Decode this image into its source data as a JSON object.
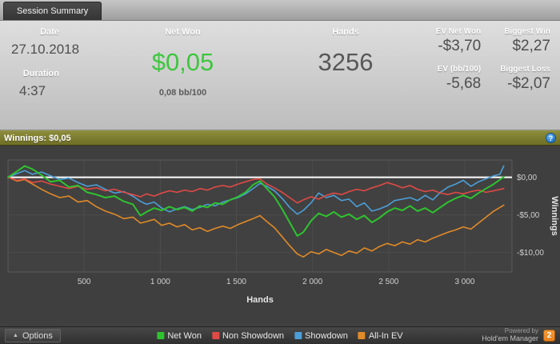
{
  "window": {
    "tab_title": "Session Summary"
  },
  "colors": {
    "net_won_green": "#3ec63e",
    "winnings_bar": "#6f6f26",
    "winnings_bar_light": "#8c8c3c",
    "help_blue": "#2f86d8",
    "badge_orange": "#e8821e"
  },
  "stats": {
    "date": {
      "label": "Date",
      "value": "27.10.2018"
    },
    "duration": {
      "label": "Duration",
      "value": "4:37"
    },
    "net_won": {
      "label": "Net Won",
      "value": "$0,05",
      "sub": "0,08 bb/100"
    },
    "hands": {
      "label": "Hands",
      "value": "3256"
    },
    "ev_net_won": {
      "label": "EV Net Won",
      "value": "-$3,70"
    },
    "biggest_win": {
      "label": "Biggest Win",
      "value": "$2,27"
    },
    "ev_bb100": {
      "label": "EV (bb/100)",
      "value": "-5,68"
    },
    "biggest_loss": {
      "label": "Biggest Loss",
      "value": "-$2,07"
    }
  },
  "winnings_bar": {
    "label": "Winnings: $0,05",
    "help": "?"
  },
  "chart_data": {
    "type": "line",
    "xlabel": "Hands",
    "ylabel": "Winnings",
    "xlim": [
      0,
      3310
    ],
    "ylim": [
      -12.6,
      2.3
    ],
    "plot_bg": "#414141",
    "plot_border": "#5a5a5a",
    "grid_color": "#4d4d4d",
    "tick_color": "#d0d0d0",
    "zero_line_color": "#ffffff",
    "x_ticks": [
      {
        "value": 500,
        "label": "500"
      },
      {
        "value": 1000,
        "label": "1 000"
      },
      {
        "value": 1500,
        "label": "1 500"
      },
      {
        "value": 2000,
        "label": "2 000"
      },
      {
        "value": 2500,
        "label": "2 500"
      },
      {
        "value": 3000,
        "label": "3 000"
      }
    ],
    "y_ticks": [
      {
        "value": 0,
        "label": "$0,00"
      },
      {
        "value": -5,
        "label": "-$5,00"
      },
      {
        "value": -10,
        "label": "-$10,00"
      }
    ],
    "series": [
      {
        "name": "Net Won",
        "color": "#2ec42e",
        "width": 2,
        "points": [
          [
            0,
            0
          ],
          [
            60,
            0.8
          ],
          [
            110,
            1.5
          ],
          [
            160,
            1.1
          ],
          [
            220,
            0.3
          ],
          [
            280,
            -0.6
          ],
          [
            340,
            -0.4
          ],
          [
            400,
            -1.3
          ],
          [
            460,
            -1.1
          ],
          [
            520,
            -2.0
          ],
          [
            580,
            -2.3
          ],
          [
            640,
            -2.7
          ],
          [
            700,
            -2.5
          ],
          [
            760,
            -3.2
          ],
          [
            820,
            -3.6
          ],
          [
            870,
            -5.1
          ],
          [
            910,
            -4.6
          ],
          [
            960,
            -4.1
          ],
          [
            1010,
            -4.4
          ],
          [
            1060,
            -3.9
          ],
          [
            1110,
            -4.3
          ],
          [
            1160,
            -4.0
          ],
          [
            1210,
            -4.5
          ],
          [
            1260,
            -3.8
          ],
          [
            1310,
            -4.0
          ],
          [
            1360,
            -3.4
          ],
          [
            1410,
            -3.6
          ],
          [
            1460,
            -3.0
          ],
          [
            1510,
            -2.6
          ],
          [
            1560,
            -2.0
          ],
          [
            1610,
            -1.0
          ],
          [
            1655,
            -0.5
          ],
          [
            1700,
            -1.5
          ],
          [
            1750,
            -2.6
          ],
          [
            1800,
            -4.2
          ],
          [
            1850,
            -6.0
          ],
          [
            1900,
            -7.8
          ],
          [
            1940,
            -7.3
          ],
          [
            1990,
            -5.8
          ],
          [
            2040,
            -4.8
          ],
          [
            2090,
            -5.2
          ],
          [
            2140,
            -4.6
          ],
          [
            2190,
            -5.3
          ],
          [
            2240,
            -4.9
          ],
          [
            2290,
            -5.6
          ],
          [
            2340,
            -5.1
          ],
          [
            2390,
            -6.0
          ],
          [
            2440,
            -5.4
          ],
          [
            2490,
            -4.6
          ],
          [
            2540,
            -4.1
          ],
          [
            2590,
            -4.4
          ],
          [
            2640,
            -3.8
          ],
          [
            2690,
            -4.5
          ],
          [
            2740,
            -4.1
          ],
          [
            2790,
            -4.7
          ],
          [
            2840,
            -4.0
          ],
          [
            2890,
            -3.3
          ],
          [
            2940,
            -2.8
          ],
          [
            2990,
            -2.4
          ],
          [
            3040,
            -2.8
          ],
          [
            3090,
            -2.1
          ],
          [
            3140,
            -1.5
          ],
          [
            3190,
            -0.9
          ],
          [
            3256,
            0.05
          ]
        ]
      },
      {
        "name": "Non Showdown",
        "color": "#e04a45",
        "width": 1.6,
        "points": [
          [
            0,
            0
          ],
          [
            60,
            -0.4
          ],
          [
            110,
            -0.2
          ],
          [
            160,
            -0.7
          ],
          [
            220,
            -0.5
          ],
          [
            280,
            -0.9
          ],
          [
            340,
            -1.2
          ],
          [
            400,
            -1.5
          ],
          [
            460,
            -1.2
          ],
          [
            520,
            -1.6
          ],
          [
            580,
            -1.4
          ],
          [
            640,
            -1.8
          ],
          [
            700,
            -1.6
          ],
          [
            760,
            -2.0
          ],
          [
            820,
            -2.3
          ],
          [
            870,
            -2.6
          ],
          [
            910,
            -2.2
          ],
          [
            960,
            -2.5
          ],
          [
            1010,
            -2.1
          ],
          [
            1060,
            -1.8
          ],
          [
            1110,
            -2.0
          ],
          [
            1160,
            -1.7
          ],
          [
            1210,
            -1.9
          ],
          [
            1260,
            -1.5
          ],
          [
            1310,
            -1.7
          ],
          [
            1360,
            -1.3
          ],
          [
            1410,
            -1.1
          ],
          [
            1460,
            -1.3
          ],
          [
            1510,
            -0.9
          ],
          [
            1560,
            -0.6
          ],
          [
            1610,
            -0.3
          ],
          [
            1655,
            -0.2
          ],
          [
            1700,
            -0.9
          ],
          [
            1750,
            -1.4
          ],
          [
            1800,
            -2.0
          ],
          [
            1850,
            -2.7
          ],
          [
            1900,
            -3.4
          ],
          [
            1940,
            -3.0
          ],
          [
            1990,
            -2.6
          ],
          [
            2040,
            -2.9
          ],
          [
            2090,
            -2.4
          ],
          [
            2140,
            -2.1
          ],
          [
            2190,
            -2.3
          ],
          [
            2240,
            -1.9
          ],
          [
            2290,
            -1.6
          ],
          [
            2340,
            -1.8
          ],
          [
            2390,
            -1.4
          ],
          [
            2440,
            -1.1
          ],
          [
            2490,
            -0.7
          ],
          [
            2540,
            -1.0
          ],
          [
            2590,
            -1.4
          ],
          [
            2640,
            -1.1
          ],
          [
            2690,
            -1.6
          ],
          [
            2740,
            -1.9
          ],
          [
            2790,
            -1.7
          ],
          [
            2840,
            -2.1
          ],
          [
            2890,
            -2.3
          ],
          [
            2940,
            -2.0
          ],
          [
            2990,
            -2.2
          ],
          [
            3040,
            -1.9
          ],
          [
            3090,
            -1.7
          ],
          [
            3140,
            -2.0
          ],
          [
            3190,
            -1.8
          ],
          [
            3256,
            -1.5
          ]
        ]
      },
      {
        "name": "Showdown",
        "color": "#4b9fd8",
        "width": 1.6,
        "points": [
          [
            0,
            0
          ],
          [
            60,
            0.5
          ],
          [
            110,
            0.9
          ],
          [
            160,
            0.4
          ],
          [
            220,
            0.7
          ],
          [
            280,
            0.2
          ],
          [
            340,
            -0.3
          ],
          [
            400,
            -0.1
          ],
          [
            460,
            -0.7
          ],
          [
            520,
            -1.2
          ],
          [
            580,
            -1.0
          ],
          [
            640,
            -1.6
          ],
          [
            700,
            -2.1
          ],
          [
            760,
            -1.9
          ],
          [
            820,
            -2.5
          ],
          [
            870,
            -3.2
          ],
          [
            910,
            -3.6
          ],
          [
            960,
            -3.3
          ],
          [
            1010,
            -4.1
          ],
          [
            1060,
            -4.6
          ],
          [
            1110,
            -4.2
          ],
          [
            1160,
            -3.9
          ],
          [
            1210,
            -4.3
          ],
          [
            1260,
            -4.0
          ],
          [
            1310,
            -3.6
          ],
          [
            1360,
            -3.8
          ],
          [
            1410,
            -3.3
          ],
          [
            1460,
            -3.0
          ],
          [
            1510,
            -2.7
          ],
          [
            1560,
            -2.2
          ],
          [
            1610,
            -1.5
          ],
          [
            1655,
            -0.8
          ],
          [
            1700,
            -1.2
          ],
          [
            1750,
            -1.8
          ],
          [
            1800,
            -2.8
          ],
          [
            1850,
            -4.0
          ],
          [
            1900,
            -4.9
          ],
          [
            1940,
            -4.4
          ],
          [
            1990,
            -3.4
          ],
          [
            2040,
            -2.1
          ],
          [
            2090,
            -2.7
          ],
          [
            2140,
            -2.4
          ],
          [
            2190,
            -3.1
          ],
          [
            2240,
            -2.9
          ],
          [
            2290,
            -3.9
          ],
          [
            2340,
            -3.4
          ],
          [
            2390,
            -4.5
          ],
          [
            2440,
            -4.2
          ],
          [
            2490,
            -3.8
          ],
          [
            2540,
            -3.1
          ],
          [
            2590,
            -2.9
          ],
          [
            2640,
            -2.7
          ],
          [
            2690,
            -3.1
          ],
          [
            2740,
            -2.4
          ],
          [
            2790,
            -3.0
          ],
          [
            2840,
            -2.0
          ],
          [
            2890,
            -1.3
          ],
          [
            2940,
            -0.9
          ],
          [
            2990,
            -0.4
          ],
          [
            3040,
            -1.2
          ],
          [
            3090,
            -0.6
          ],
          [
            3140,
            -0.2
          ],
          [
            3190,
            0.2
          ],
          [
            3230,
            0.4
          ],
          [
            3256,
            1.5
          ]
        ]
      },
      {
        "name": "All-In EV",
        "color": "#e08a28",
        "width": 1.6,
        "points": [
          [
            0,
            0
          ],
          [
            60,
            -0.5
          ],
          [
            110,
            -0.3
          ],
          [
            160,
            -0.9
          ],
          [
            220,
            -1.6
          ],
          [
            280,
            -2.2
          ],
          [
            340,
            -2.7
          ],
          [
            400,
            -2.5
          ],
          [
            460,
            -3.3
          ],
          [
            520,
            -3.1
          ],
          [
            580,
            -3.9
          ],
          [
            640,
            -4.5
          ],
          [
            700,
            -4.9
          ],
          [
            760,
            -5.5
          ],
          [
            820,
            -5.3
          ],
          [
            870,
            -6.1
          ],
          [
            910,
            -5.9
          ],
          [
            960,
            -5.6
          ],
          [
            1010,
            -6.4
          ],
          [
            1060,
            -6.1
          ],
          [
            1110,
            -6.6
          ],
          [
            1160,
            -6.3
          ],
          [
            1210,
            -7.0
          ],
          [
            1260,
            -6.7
          ],
          [
            1310,
            -7.2
          ],
          [
            1360,
            -6.8
          ],
          [
            1410,
            -6.5
          ],
          [
            1460,
            -6.8
          ],
          [
            1510,
            -6.3
          ],
          [
            1560,
            -5.9
          ],
          [
            1610,
            -5.5
          ],
          [
            1655,
            -5.1
          ],
          [
            1700,
            -5.9
          ],
          [
            1750,
            -6.7
          ],
          [
            1800,
            -7.9
          ],
          [
            1850,
            -9.1
          ],
          [
            1900,
            -10.2
          ],
          [
            1940,
            -10.6
          ],
          [
            1990,
            -9.9
          ],
          [
            2040,
            -10.2
          ],
          [
            2090,
            -9.6
          ],
          [
            2140,
            -10.0
          ],
          [
            2190,
            -10.4
          ],
          [
            2240,
            -9.8
          ],
          [
            2290,
            -10.1
          ],
          [
            2340,
            -9.4
          ],
          [
            2390,
            -9.8
          ],
          [
            2440,
            -9.2
          ],
          [
            2490,
            -8.8
          ],
          [
            2540,
            -9.1
          ],
          [
            2590,
            -8.6
          ],
          [
            2640,
            -8.9
          ],
          [
            2690,
            -8.3
          ],
          [
            2740,
            -8.6
          ],
          [
            2790,
            -8.1
          ],
          [
            2840,
            -7.7
          ],
          [
            2890,
            -7.3
          ],
          [
            2940,
            -7.0
          ],
          [
            2990,
            -6.6
          ],
          [
            3040,
            -6.9
          ],
          [
            3090,
            -6.1
          ],
          [
            3140,
            -5.3
          ],
          [
            3190,
            -4.5
          ],
          [
            3256,
            -3.7
          ]
        ]
      }
    ]
  },
  "footer": {
    "options_label": "Options",
    "powered_by": "Powered by",
    "brand": "Hold'em Manager",
    "brand_badge": "2"
  }
}
